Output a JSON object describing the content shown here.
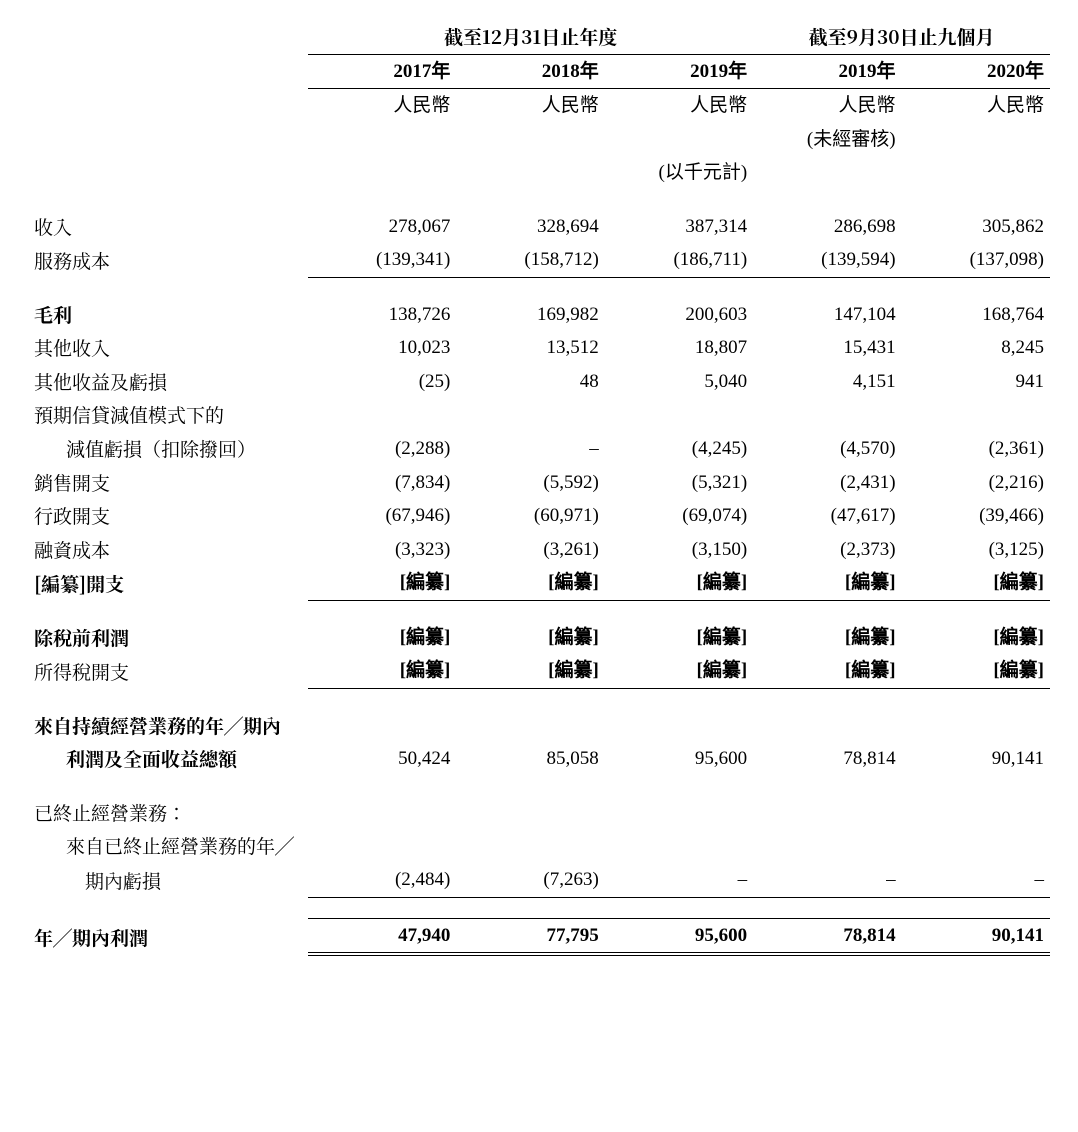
{
  "header": {
    "period_year": "截至12月31日止年度",
    "period_nine": "截至9月30日止九個月",
    "y2017": "2017年",
    "y2018": "2018年",
    "y2019": "2019年",
    "m2019": "2019年",
    "m2020": "2020年",
    "rmb": "人民幣",
    "unaudited": "(未經審核)",
    "thousands": "(以千元計)"
  },
  "rows": {
    "revenue_label": "收入",
    "revenue": {
      "c1": "278,067",
      "c2": "328,694",
      "c3": "387,314",
      "c4": "286,698",
      "c5": "305,862"
    },
    "cost_label": "服務成本",
    "cost": {
      "c1": "(139,341)",
      "c2": "(158,712)",
      "c3": "(186,711)",
      "c4": "(139,594)",
      "c5": "(137,098)"
    },
    "gross_label": "毛利",
    "gross": {
      "c1": "138,726",
      "c2": "169,982",
      "c3": "200,603",
      "c4": "147,104",
      "c5": "168,764"
    },
    "other_income_label": "其他收入",
    "other_income": {
      "c1": "10,023",
      "c2": "13,512",
      "c3": "18,807",
      "c4": "15,431",
      "c5": "8,245"
    },
    "other_gain_label": "其他收益及虧損",
    "other_gain": {
      "c1": "(25)",
      "c2": "48",
      "c3": "5,040",
      "c4": "4,151",
      "c5": "941"
    },
    "ecl_label1": "預期信貸減值模式下的",
    "ecl_label2": "減值虧損（扣除撥回）",
    "ecl": {
      "c1": "(2,288)",
      "c2": "–",
      "c3": "(4,245)",
      "c4": "(4,570)",
      "c5": "(2,361)"
    },
    "selling_label": "銷售開支",
    "selling": {
      "c1": "(7,834)",
      "c2": "(5,592)",
      "c3": "(5,321)",
      "c4": "(2,431)",
      "c5": "(2,216)"
    },
    "admin_label": "行政開支",
    "admin": {
      "c1": "(67,946)",
      "c2": "(60,971)",
      "c3": "(69,074)",
      "c4": "(47,617)",
      "c5": "(39,466)"
    },
    "finance_label": "融資成本",
    "finance": {
      "c1": "(3,323)",
      "c2": "(3,261)",
      "c3": "(3,150)",
      "c4": "(2,373)",
      "c5": "(3,125)"
    },
    "redact_expense_label": "[編纂]開支",
    "redact": "[編纂]",
    "pbt_label": "除稅前利潤",
    "tax_label": "所得稅開支",
    "cont_label1": "來自持續經營業務的年╱期內",
    "cont_label2": "利潤及全面收益總額",
    "cont": {
      "c1": "50,424",
      "c2": "85,058",
      "c3": "95,600",
      "c4": "78,814",
      "c5": "90,141"
    },
    "disc_header": "已終止經營業務：",
    "disc_label1": "來自已終止經營業務的年╱",
    "disc_label2": "期內虧損",
    "disc": {
      "c1": "(2,484)",
      "c2": "(7,263)",
      "c3": "–",
      "c4": "–",
      "c5": "–"
    },
    "net_label": "年╱期內利潤",
    "net": {
      "c1": "47,940",
      "c2": "77,795",
      "c3": "95,600",
      "c4": "78,814",
      "c5": "90,141"
    }
  }
}
